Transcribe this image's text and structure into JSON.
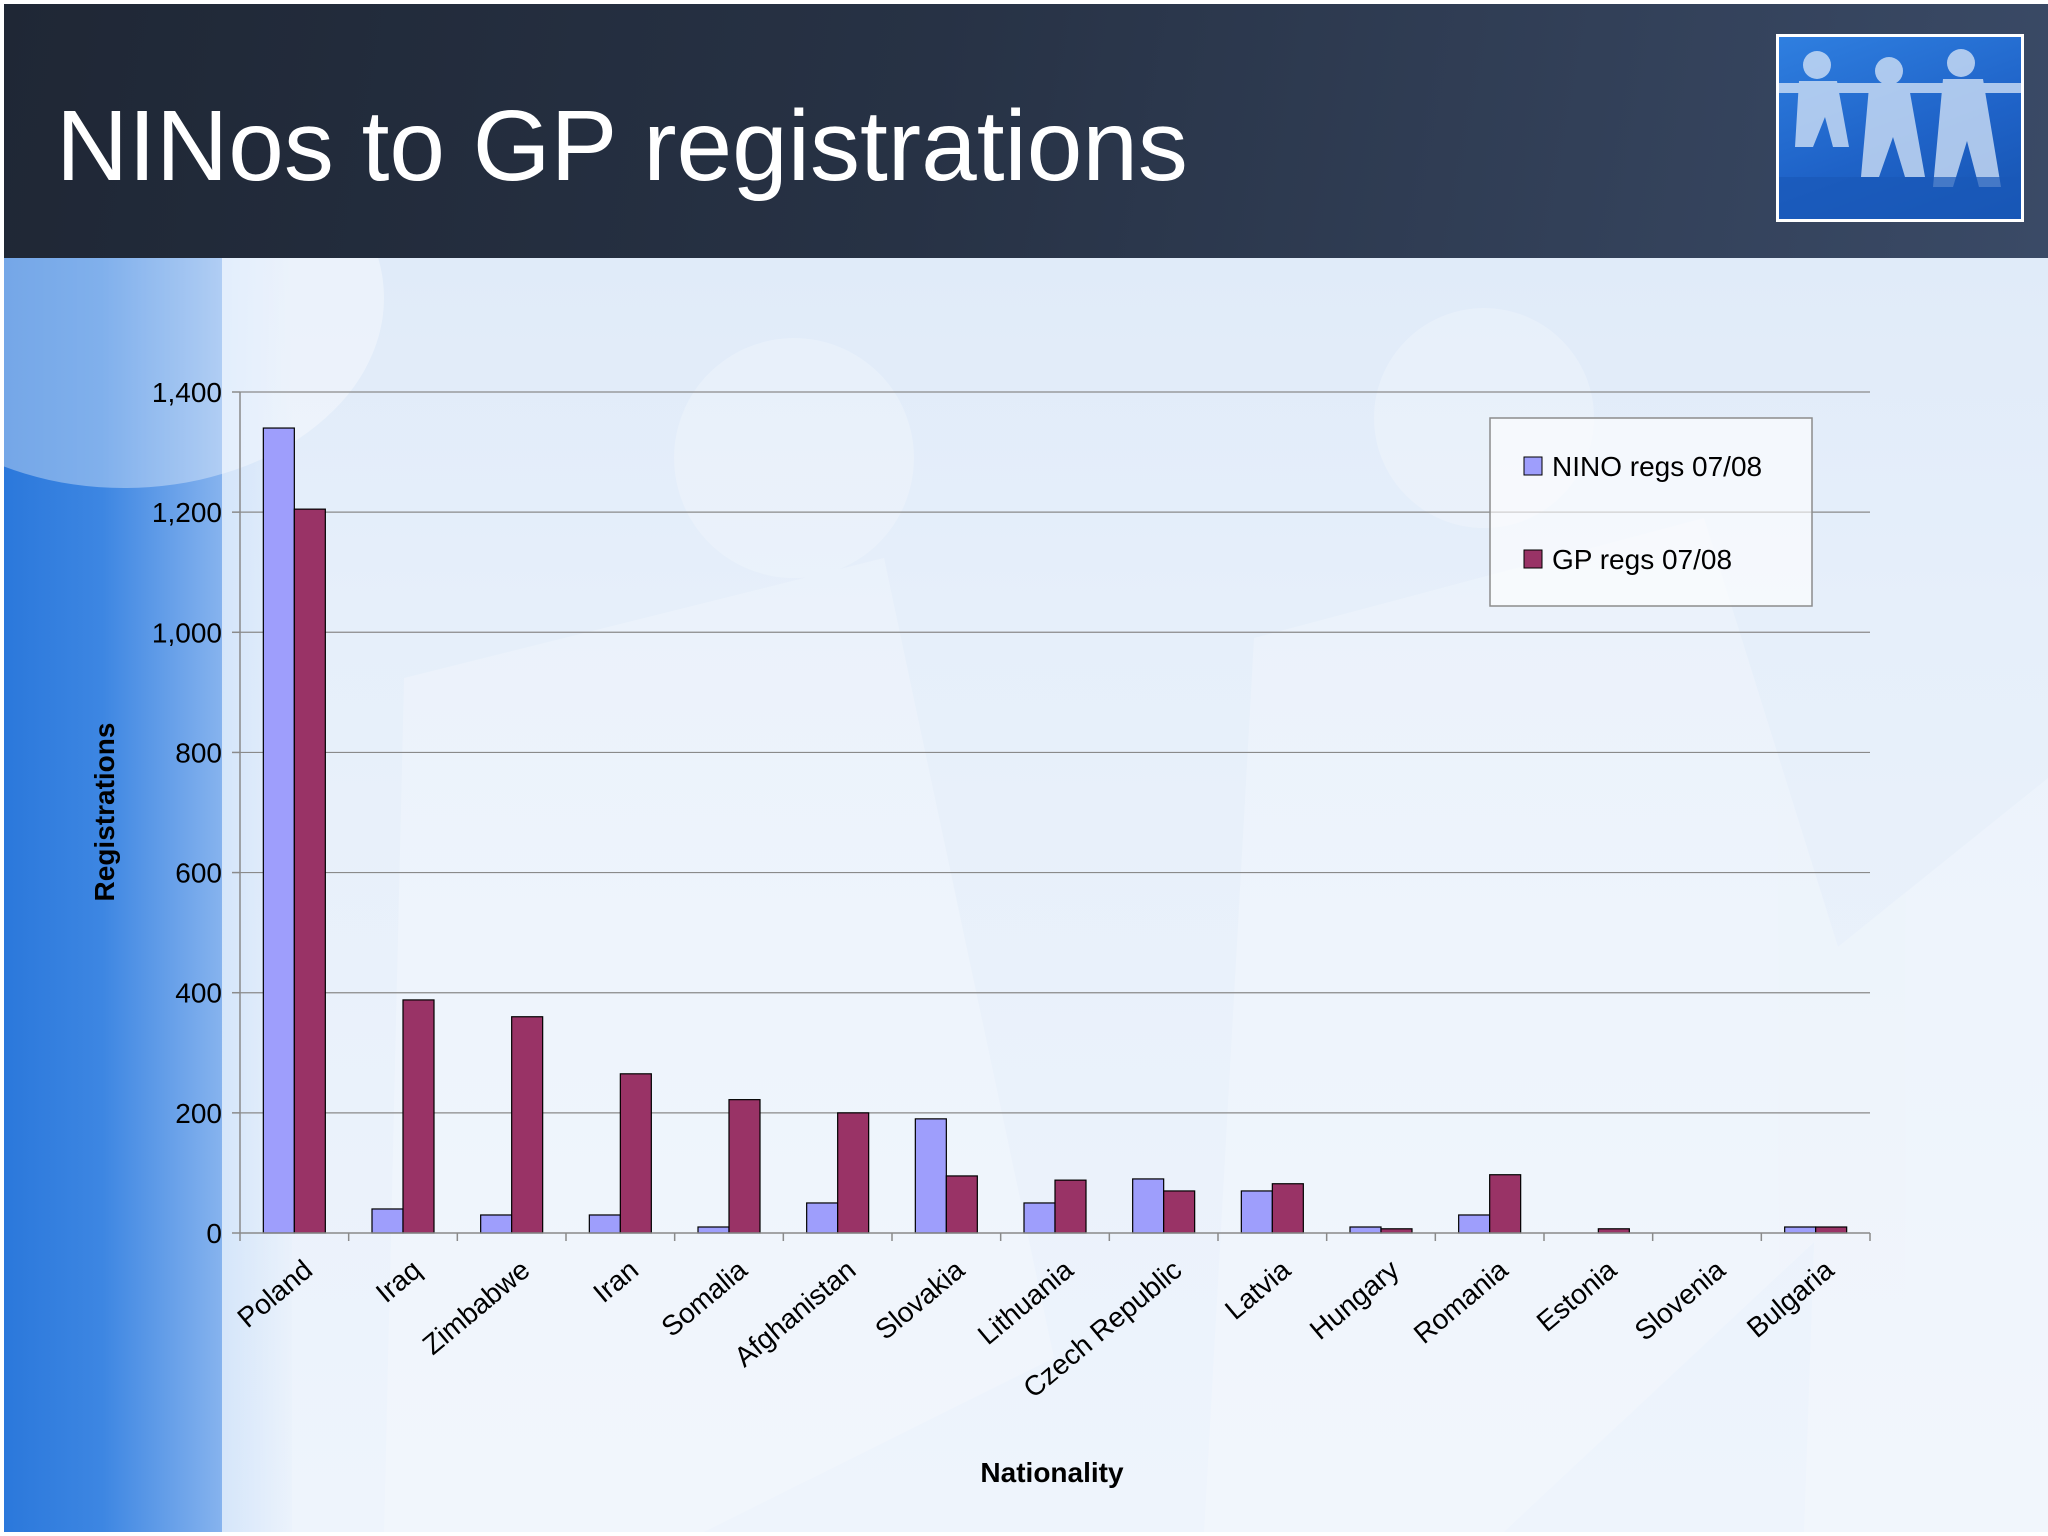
{
  "slide": {
    "title": "NINos to GP registrations"
  },
  "colors": {
    "header_bg": "#273245",
    "series_nino": "#9e9efc",
    "series_gp": "#993366",
    "gridline": "#8a8a8a"
  },
  "chart_data": {
    "type": "bar",
    "title": "",
    "xlabel": "Nationality",
    "ylabel": "Registrations",
    "ylim": [
      0,
      1400
    ],
    "y_ticks": [
      0,
      200,
      400,
      600,
      800,
      1000,
      1200,
      1400
    ],
    "y_tick_labels": [
      "0",
      "200",
      "400",
      "600",
      "800",
      "1,000",
      "1,200",
      "1,400"
    ],
    "grid": true,
    "legend_position": "top-right",
    "categories": [
      "Poland",
      "Iraq",
      "Zimbabwe",
      "Iran",
      "Somalia",
      "Afghanistan",
      "Slovakia",
      "Lithuania",
      "Czech Republic",
      "Latvia",
      "Hungary",
      "Romania",
      "Estonia",
      "Slovenia",
      "Bulgaria"
    ],
    "series": [
      {
        "name": "NINO regs 07/08",
        "color": "#9e9efc",
        "values": [
          1340,
          40,
          30,
          30,
          10,
          50,
          190,
          50,
          90,
          70,
          10,
          30,
          0,
          0,
          10
        ]
      },
      {
        "name": "GP regs 07/08",
        "color": "#993366",
        "values": [
          1205,
          388,
          360,
          265,
          222,
          200,
          95,
          88,
          70,
          82,
          7,
          97,
          7,
          0,
          10
        ]
      }
    ]
  }
}
